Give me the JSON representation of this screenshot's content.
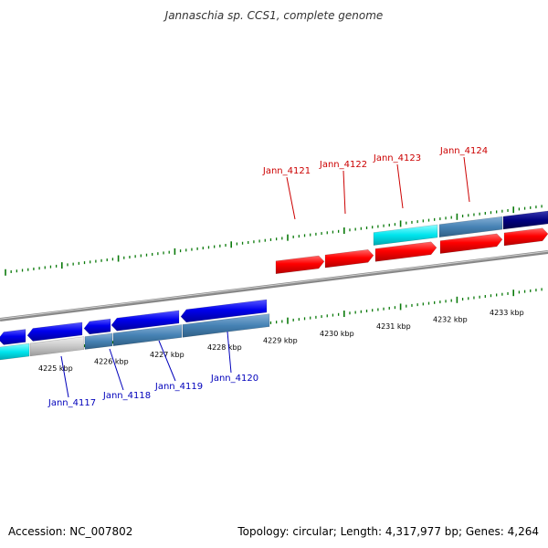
{
  "title": "Jannaschia sp. CCS1, complete genome",
  "footer": {
    "accession": "Accession: NC_007802",
    "topology": "Topology: circular; Length: 4,317,977 bp; Genes: 4,264"
  },
  "colors": {
    "forward_gene": "#ff0000",
    "reverse_gene": "#0000ee",
    "forward_label": "#cc0000",
    "reverse_label": "#0000bb",
    "tick": "#0a7a0a",
    "backbone": "#888888",
    "cds_steelblue": "#4682b4",
    "cds_cyan": "#00e5ee",
    "cds_navy": "#000080",
    "cds_gray": "#c8c8c8"
  },
  "scale_labels": [
    "4225 kbp",
    "4226 kbp",
    "4227 kbp",
    "4228 kbp",
    "4229 kbp",
    "4230 kbp",
    "4231 kbp",
    "4232 kbp",
    "4233 kbp"
  ],
  "forward_genes": [
    {
      "label": "Jann_4121"
    },
    {
      "label": "Jann_4122"
    },
    {
      "label": "Jann_4123"
    },
    {
      "label": "Jann_4124"
    }
  ],
  "reverse_genes": [
    {
      "label": "Jann_4117"
    },
    {
      "label": "Jann_4118"
    },
    {
      "label": "Jann_4119"
    },
    {
      "label": "Jann_4120"
    }
  ]
}
